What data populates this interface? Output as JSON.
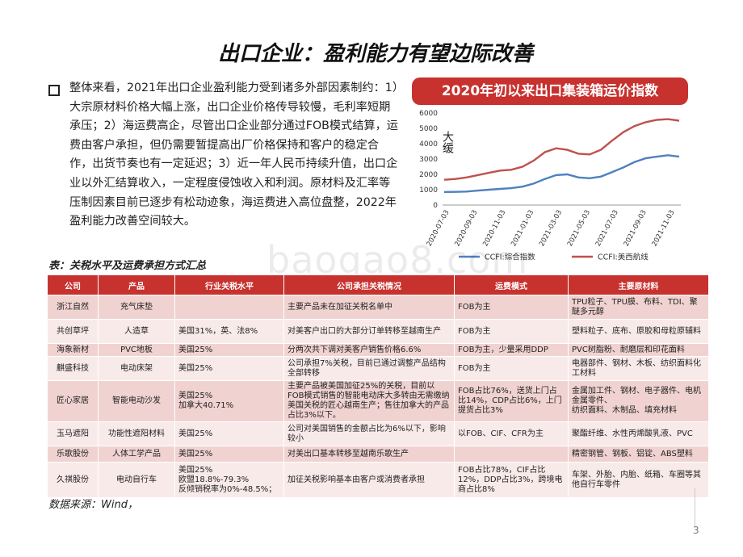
{
  "title": "出口企业：盈利能力有望边际改善",
  "body": "整体来看，2021年出口企业盈利能力受到诸多外部因素制约：1）大宗原材料价格大幅上涨，出口企业价格传导较慢，毛利率短期承压；2）海运费高企，尽管出口企业部分通过FOB模式结算，运费由客户承担，但仍需要暂提高出厂价格保持和客户的稳定合作，出货节奏也有一定延迟；3）近一年人民币持续升值，出口企业以外汇结算收入，一定程度侵蚀收入和利润。原材料及汇率等压制因素目前已逐步有松动迹象，海运费进入高位盘整，2022年盈利能力改善空间较大。",
  "chart_data": {
    "type": "line",
    "title": "2020年初以来出口集装箱运价指数",
    "annotation": "大缓",
    "ylim": [
      0,
      6000
    ],
    "yticks": [
      "0",
      "1000",
      "2000",
      "3000",
      "4000",
      "5000",
      "6000"
    ],
    "xticks": [
      "2020-07-03",
      "2020-09-03",
      "2020-11-03",
      "2021-01-03",
      "2021-03-03",
      "2021-05-03",
      "2021-07-03",
      "2021-09-03",
      "2021-11-03"
    ],
    "colors": {
      "composite": "#4f81bd",
      "us_west": "#c0504d"
    },
    "series": [
      {
        "name": "CCFI:综合指数",
        "color": "#4f81bd",
        "values": [
          850,
          860,
          880,
          940,
          1000,
          1050,
          1100,
          1200,
          1400,
          1700,
          1950,
          2000,
          1800,
          1750,
          1850,
          2150,
          2450,
          2800,
          3050,
          3150,
          3250,
          3150
        ]
      },
      {
        "name": "CCFI:美西航线",
        "color": "#c0504d",
        "values": [
          1650,
          1700,
          1800,
          1950,
          2100,
          2250,
          2300,
          2500,
          2900,
          3450,
          3700,
          3600,
          3350,
          3300,
          3600,
          4200,
          4750,
          5150,
          5400,
          5550,
          5600,
          5500
        ]
      }
    ]
  },
  "table": {
    "caption": "表：关税水平及运费承担方式汇总",
    "headers": [
      "公司",
      "产品",
      "行业关税水平",
      "公司承担关税情况",
      "运费模式",
      "主要原材料"
    ],
    "rows": [
      [
        "浙江自然",
        "充气床垫",
        "",
        "主要产品未在加征关税名单中",
        "FOB为主",
        "TPU粒子、TPU膜、布料、TDI、聚醚多元醇"
      ],
      [
        "共创草坪",
        "人造草",
        "美国31%，英、法8%",
        "对美客户出口的大部分订单转移至越南生产",
        "FOB为主",
        "塑料粒子、底布、原胶和母粒原辅料"
      ],
      [
        "海象新材",
        "PVC地板",
        "美国25%",
        "分两次共下调对美客户销售价格6.6%",
        "FOB为主，少量采用DDP",
        "PVC树脂粉、耐磨层和印花面料"
      ],
      [
        "麒盛科技",
        "电动床架",
        "美国25%",
        "公司承担7%关税，目前已通过调整产品结构全部转移",
        "FOB为主",
        "电器部件、钢材、木板、纺织面料化工材料"
      ],
      [
        "匠心家居",
        "智能电动沙发",
        "美国25%\n加拿大40.71%",
        "主要产品被美国加征25%的关税，目前以FOB模式销售的智能电动床大多转由无需缴纳美国关税的匠心越南生产；售往加拿大的产品占比3%以下。",
        "FOB占比76%，送货上门占比14%，CDP占比6%，上门提货占比3%",
        "金属加工件、钢材、电子器件、电机金属零件、\n纺织面料、木制品、填充材料"
      ],
      [
        "玉马遮阳",
        "功能性遮阳材料",
        "美国25%",
        "公司对美国销售的金额占比为6%以下，影响较小",
        "以FOB、CIF、CFR为主",
        "聚酯纤维、水性丙烯酸乳液、PVC"
      ],
      [
        "乐歌股份",
        "人体工学产品",
        "美国25%",
        "对美出口基本转移至越南乐歌生产",
        "",
        "精密钢管、钢板、铝锭、ABS塑料"
      ],
      [
        "久祺股份",
        "电动自行车",
        "美国25%\n欧盟18.8%-79.3%\n反倾销税率为0%-48.5%；",
        "加征关税影响基本由客户或消费者承担",
        "FOB占比78%，CIF占比12%，DDP占比3%，跨境电商占比8%",
        "车架、外胎、内胎、纸箱、车圈等其他自行车零件"
      ]
    ]
  },
  "source": "数据来源：Wind，",
  "watermark": "baogao8.com",
  "page_number": "3"
}
